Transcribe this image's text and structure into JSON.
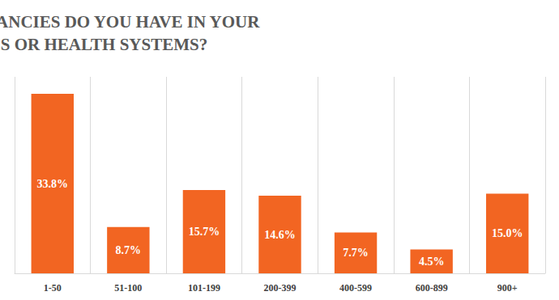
{
  "chart_data": {
    "type": "bar",
    "title": "HOW MANY VACANCIES DO YOU HAVE IN YOUR HOSPITALS OR HEALTH SYSTEMS?",
    "categories": [
      "1-50",
      "51-100",
      "101-199",
      "200-399",
      "400-599",
      "600-899",
      "900+"
    ],
    "values": [
      33.8,
      8.7,
      15.7,
      14.6,
      7.7,
      4.5,
      15.0
    ],
    "value_labels": [
      "33.8%",
      "8.7%",
      "15.7%",
      "14.6%",
      "7.7%",
      "4.5%",
      "15.0%"
    ],
    "color": "#f26522",
    "ylim": [
      0,
      37
    ],
    "grid": true,
    "data_labels": true,
    "tick_labels": "x"
  }
}
